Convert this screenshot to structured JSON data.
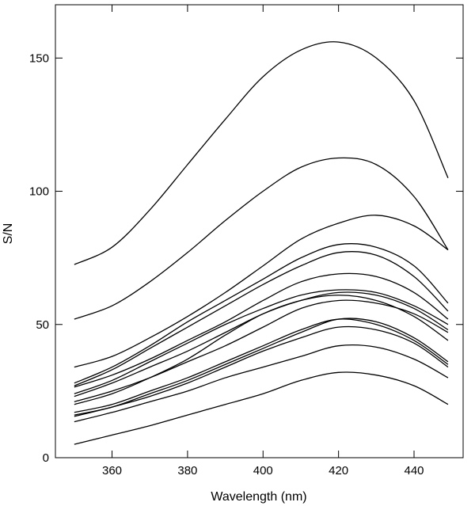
{
  "chart_data": {
    "type": "line",
    "title": "",
    "xlabel": "Wavelength (nm)",
    "ylabel": "S/N",
    "xlim": [
      345,
      453
    ],
    "ylim": [
      0,
      170
    ],
    "xticks": [
      360,
      380,
      400,
      420,
      440
    ],
    "yticks": [
      0,
      50,
      100,
      150
    ],
    "grid": false,
    "legend": "none",
    "line_color": "#000000",
    "x": [
      350,
      360,
      370,
      380,
      390,
      400,
      410,
      420,
      430,
      440,
      449
    ],
    "series": [
      {
        "values": [
          72.5,
          79,
          93,
          110,
          127,
          143,
          153,
          156,
          150,
          134,
          105
        ]
      },
      {
        "values": [
          52,
          57,
          66,
          77,
          89,
          100,
          109,
          112.5,
          110,
          98,
          78
        ]
      },
      {
        "values": [
          34,
          38,
          45,
          53,
          62,
          72,
          82,
          88,
          91,
          87,
          78
        ]
      },
      {
        "values": [
          28,
          34,
          42,
          51,
          59,
          67,
          75,
          80,
          79,
          72,
          58
        ]
      },
      {
        "values": [
          27,
          33,
          41,
          49,
          57,
          65,
          72,
          77,
          76,
          68,
          55
        ]
      },
      {
        "values": [
          26.5,
          31,
          37,
          44,
          51,
          59,
          66,
          69,
          68,
          62,
          52
        ]
      },
      {
        "values": [
          24,
          29,
          36,
          43,
          50,
          56,
          61,
          63,
          62,
          57,
          50
        ]
      },
      {
        "values": [
          23,
          28,
          34,
          40,
          47,
          54,
          59,
          62,
          61,
          56,
          48
        ]
      },
      {
        "values": [
          21,
          25,
          30,
          36,
          42,
          49,
          56,
          59,
          58,
          54,
          47
        ]
      },
      {
        "values": [
          20,
          24,
          30,
          37,
          46,
          54,
          59,
          61,
          59,
          53,
          44
        ]
      },
      {
        "values": [
          17,
          20,
          25,
          30,
          36,
          42,
          48,
          52,
          50,
          44,
          35
        ]
      },
      {
        "values": [
          16,
          19,
          24,
          29,
          35,
          41,
          47,
          52,
          51,
          45,
          36
        ]
      },
      {
        "values": [
          15.5,
          19,
          23,
          28,
          34,
          40,
          45,
          49,
          48,
          43,
          34
        ]
      },
      {
        "values": [
          13.5,
          17,
          21,
          25,
          30,
          34,
          38,
          42,
          41.5,
          37,
          30
        ]
      },
      {
        "values": [
          5,
          8.5,
          12,
          16,
          20,
          24,
          29,
          32,
          31,
          27,
          20
        ]
      }
    ]
  }
}
